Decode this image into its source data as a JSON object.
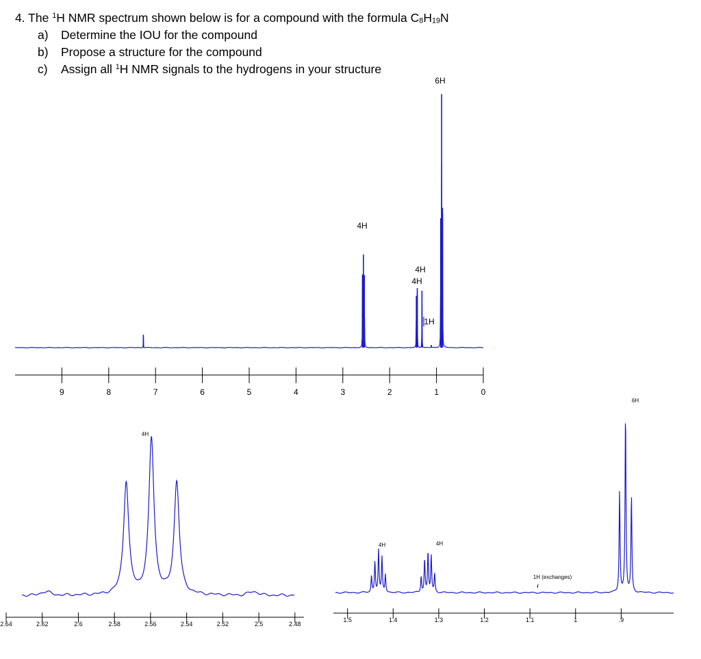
{
  "question": {
    "number": "4.",
    "lead_1": "The ",
    "lead_sup": "1",
    "lead_2": "H NMR spectrum shown below is for a compound with the formula C",
    "f_c": "8",
    "f_h": "H",
    "f_hn": "19",
    "f_n": "N",
    "parts": [
      {
        "mark": "a)",
        "text": "Determine the IOU for the compound"
      },
      {
        "mark": "b)",
        "text": "Propose a structure for the compound"
      },
      {
        "mark": "c)",
        "pre": "Assign all ",
        "sup": "1",
        "post": "H NMR signals to the hydrogens in your structure"
      }
    ]
  },
  "colors": {
    "spectrum": "#1a1acc",
    "axis": "#000000"
  },
  "chart_data": [
    {
      "type": "line",
      "description_source": "full spectrum",
      "x_unit": "ppm",
      "xlim": [
        10,
        0
      ],
      "x_ticks": [
        "9",
        "8",
        "7",
        "6",
        "5",
        "4",
        "3",
        "2",
        "1",
        "0"
      ],
      "x_tick_values": [
        9,
        8,
        7,
        6,
        5,
        4,
        3,
        2,
        1,
        0
      ],
      "baseline_note": "",
      "peaks": [
        {
          "ppm": 7.26,
          "height": 0.05
        },
        {
          "ppm": 2.58,
          "height": 0.28
        },
        {
          "ppm": 2.56,
          "height": 0.36
        },
        {
          "ppm": 2.54,
          "height": 0.28
        },
        {
          "ppm": 1.43,
          "height": 0.2
        },
        {
          "ppm": 1.41,
          "height": 0.23
        },
        {
          "ppm": 1.31,
          "height": 0.22
        },
        {
          "ppm": 1.11,
          "height": 0.01
        },
        {
          "ppm": 0.91,
          "height": 0.5
        },
        {
          "ppm": 0.89,
          "height": 0.98
        },
        {
          "ppm": 0.87,
          "height": 0.52
        }
      ],
      "annotations": [
        {
          "text": "4H",
          "ppm": 2.56
        },
        {
          "text": "4H",
          "ppm": 1.4
        },
        {
          "text": "4H",
          "ppm": 1.4
        },
        {
          "text": "1H",
          "ppm": 1.25
        },
        {
          "text": "6H",
          "ppm": 0.89
        }
      ]
    },
    {
      "type": "line",
      "description_source": "expansion 2.64-2.48 ppm",
      "x_unit": "ppm",
      "xlim": [
        2.64,
        2.475
      ],
      "x_ticks": [
        "2.64",
        "2.62",
        "2.6",
        "2.58",
        "2.56",
        "2.54",
        "2.52",
        "2.5",
        "2.48"
      ],
      "x_tick_values": [
        2.64,
        2.62,
        2.6,
        2.58,
        2.56,
        2.54,
        2.52,
        2.5,
        2.48
      ],
      "peaks": [
        {
          "ppm": 2.5735,
          "height": 0.67
        },
        {
          "ppm": 2.5595,
          "height": 0.93
        },
        {
          "ppm": 2.5455,
          "height": 0.67
        }
      ],
      "annotations": [
        {
          "text": "4H",
          "ppm": 2.5595
        }
      ]
    },
    {
      "type": "line",
      "description_source": "expansion 1.5-0.8 ppm",
      "x_unit": "ppm",
      "xlim": [
        1.51,
        0.785
      ],
      "x_ticks": [
        "1.5",
        "1.4",
        "1.3",
        "1.2",
        "1.1",
        "1",
        ".9"
      ],
      "x_tick_values": [
        1.5,
        1.4,
        1.3,
        1.2,
        1.1,
        1.0,
        0.9
      ],
      "peaks": [
        {
          "ppm": 1.4475,
          "height": 0.09
        },
        {
          "ppm": 1.44,
          "height": 0.17
        },
        {
          "ppm": 1.432,
          "height": 0.23
        },
        {
          "ppm": 1.4245,
          "height": 0.19
        },
        {
          "ppm": 1.417,
          "height": 0.1
        },
        {
          "ppm": 1.3385,
          "height": 0.09
        },
        {
          "ppm": 1.331,
          "height": 0.18
        },
        {
          "ppm": 1.3235,
          "height": 0.22
        },
        {
          "ppm": 1.3165,
          "height": 0.2
        },
        {
          "ppm": 1.309,
          "height": 0.1
        },
        {
          "ppm": 0.9035,
          "height": 0.55
        },
        {
          "ppm": 0.8905,
          "height": 0.98
        },
        {
          "ppm": 0.8775,
          "height": 0.52
        }
      ],
      "annotations": [
        {
          "text": "4H",
          "ppm": 1.432
        },
        {
          "text": "4H",
          "ppm": 1.324
        },
        {
          "text": "1H (exchanges)",
          "ppm": 1.1
        },
        {
          "text": "6H",
          "ppm": 0.89
        }
      ]
    }
  ]
}
